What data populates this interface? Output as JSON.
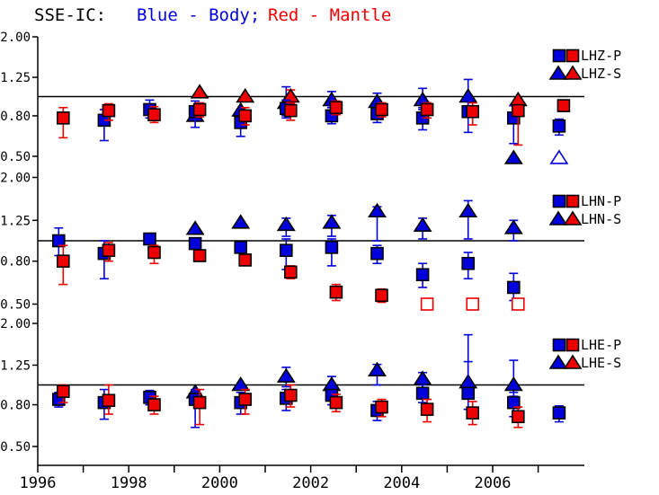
{
  "chart_data": {
    "type": "scatter",
    "title": {
      "station": "SSE-IC:",
      "body_label": "Blue - Body;",
      "mantle_label": "Red - Mantle"
    },
    "colors": {
      "body": "#0000dd",
      "mantle": "#ee0000",
      "axis": "#000000",
      "background": "#ffffff"
    },
    "y_axis": {
      "scale": "log",
      "tick_labels": [
        "2.00",
        "1.25",
        "0.80",
        "0.50"
      ],
      "tick_values": [
        2.0,
        1.25,
        0.8,
        0.5
      ],
      "reference_line": 1.0,
      "range": [
        0.44,
        2.2
      ]
    },
    "x_axis": {
      "tick_years": [
        1996,
        1997,
        1998,
        1999,
        2000,
        2001,
        2002,
        2003,
        2004,
        2005,
        2006,
        2007
      ],
      "labeled_years": [
        "1996",
        "1998",
        "2000",
        "2002",
        "2004",
        "2006"
      ],
      "range": [
        1996,
        2008
      ]
    },
    "point_format": [
      "year",
      "value",
      "err_lo",
      "err_hi",
      "open_symbol"
    ],
    "panels": [
      {
        "name": "LHZ",
        "legend": [
          {
            "label": "LHZ-P",
            "shape": "square"
          },
          {
            "label": "LHZ-S",
            "shape": "triangle"
          }
        ],
        "series": {
          "s_body": [
            [
              1999,
              0.8,
              null,
              null,
              0
            ],
            [
              2000,
              0.85,
              null,
              null,
              0
            ],
            [
              2001,
              0.93,
              0.8,
              1.12,
              0
            ],
            [
              2002,
              0.96,
              0.88,
              1.06,
              0
            ],
            [
              2003,
              0.94,
              0.86,
              1.04,
              0
            ],
            [
              2004,
              0.96,
              0.86,
              1.1,
              0
            ],
            [
              2005,
              1.0,
              0.84,
              1.22,
              0
            ],
            [
              2006,
              0.49,
              null,
              null,
              0
            ],
            [
              2007,
              0.49,
              null,
              null,
              1
            ]
          ],
          "s_mantle": [
            [
              1999,
              1.05,
              null,
              null,
              0
            ],
            [
              2000,
              1.0,
              null,
              null,
              0
            ],
            [
              2001,
              1.0,
              0.92,
              1.08,
              0
            ],
            [
              2006,
              0.96,
              null,
              null,
              0
            ]
          ],
          "p_body": [
            [
              1997,
              0.76,
              0.6,
              0.86,
              0
            ],
            [
              1998,
              0.86,
              0.78,
              0.96,
              0
            ],
            [
              1999,
              0.84,
              0.7,
              0.95,
              0
            ],
            [
              2000,
              0.74,
              0.63,
              0.85,
              0
            ],
            [
              2001,
              0.87,
              0.78,
              0.96,
              0
            ],
            [
              2002,
              0.8,
              0.73,
              0.9,
              0
            ],
            [
              2003,
              0.82,
              0.74,
              0.9,
              0
            ],
            [
              2004,
              0.78,
              0.68,
              0.88,
              0
            ],
            [
              2005,
              0.84,
              0.66,
              0.95,
              0
            ],
            [
              2006,
              0.78,
              0.58,
              0.9,
              0
            ],
            [
              2007,
              0.71,
              0.64,
              0.77,
              0
            ]
          ],
          "p_mantle": [
            [
              1996,
              0.78,
              0.62,
              0.88,
              0
            ],
            [
              1997,
              0.85,
              0.76,
              0.92,
              0
            ],
            [
              1998,
              0.81,
              0.74,
              0.89,
              0
            ],
            [
              1999,
              0.86,
              0.79,
              0.93,
              0
            ],
            [
              2000,
              0.8,
              0.72,
              0.88,
              0
            ],
            [
              2001,
              0.85,
              0.76,
              0.93,
              0
            ],
            [
              2002,
              0.88,
              0.81,
              0.95,
              0
            ],
            [
              2003,
              0.86,
              0.79,
              0.93,
              0
            ],
            [
              2004,
              0.86,
              0.78,
              0.93,
              0
            ],
            [
              2005,
              0.84,
              0.72,
              0.93,
              0
            ],
            [
              2006,
              0.85,
              0.57,
              0.95,
              0
            ],
            [
              2007,
              0.9,
              null,
              null,
              0
            ]
          ]
        }
      },
      {
        "name": "LHN",
        "legend": [
          {
            "label": "LHN-P",
            "shape": "square"
          },
          {
            "label": "LHN-S",
            "shape": "triangle"
          }
        ],
        "series": {
          "s_body": [
            [
              1999,
              1.14,
              null,
              null,
              0
            ],
            [
              2000,
              1.22,
              null,
              null,
              0
            ],
            [
              2001,
              1.19,
              1.05,
              1.28,
              0
            ],
            [
              2002,
              1.22,
              1.05,
              1.32,
              0
            ],
            [
              2003,
              1.38,
              1.0,
              1.45,
              0
            ],
            [
              2004,
              1.18,
              1.02,
              1.28,
              0
            ],
            [
              2005,
              1.38,
              1.02,
              1.55,
              0
            ],
            [
              2006,
              1.15,
              1.0,
              1.25,
              0
            ]
          ],
          "s_mantle": [],
          "p_body": [
            [
              1996,
              1.0,
              0.85,
              1.15,
              0
            ],
            [
              1997,
              0.87,
              0.66,
              1.0,
              0
            ],
            [
              1998,
              1.02,
              null,
              null,
              0
            ],
            [
              1999,
              0.97,
              null,
              null,
              0
            ],
            [
              2000,
              0.93,
              null,
              null,
              0
            ],
            [
              2001,
              0.9,
              0.73,
              1.02,
              0
            ],
            [
              2002,
              0.93,
              0.76,
              1.02,
              0
            ],
            [
              2003,
              0.87,
              0.78,
              0.95,
              0
            ],
            [
              2004,
              0.69,
              0.6,
              0.78,
              0
            ],
            [
              2005,
              0.78,
              0.66,
              0.88,
              0
            ],
            [
              2006,
              0.6,
              0.52,
              0.7,
              0
            ]
          ],
          "p_mantle": [
            [
              1996,
              0.8,
              0.62,
              0.95,
              0
            ],
            [
              1997,
              0.9,
              0.8,
              0.98,
              0
            ],
            [
              1998,
              0.88,
              0.78,
              0.95,
              0
            ],
            [
              1999,
              0.85,
              null,
              null,
              0
            ],
            [
              2000,
              0.81,
              null,
              null,
              0
            ],
            [
              2001,
              0.71,
              0.66,
              0.76,
              0
            ],
            [
              2002,
              0.57,
              0.52,
              0.62,
              0
            ],
            [
              2003,
              0.55,
              0.51,
              0.59,
              0
            ],
            [
              2004,
              0.5,
              null,
              null,
              1
            ],
            [
              2005,
              0.5,
              null,
              null,
              1
            ],
            [
              2006,
              0.5,
              null,
              null,
              1
            ]
          ]
        }
      },
      {
        "name": "LHE",
        "legend": [
          {
            "label": "LHE-P",
            "shape": "square"
          },
          {
            "label": "LHE-S",
            "shape": "triangle"
          }
        ],
        "series": {
          "s_body": [
            [
              1999,
              0.92,
              null,
              null,
              0
            ],
            [
              2000,
              1.0,
              null,
              null,
              0
            ],
            [
              2001,
              1.1,
              0.98,
              1.22,
              0
            ],
            [
              2002,
              1.0,
              0.9,
              1.1,
              0
            ],
            [
              2003,
              1.18,
              1.0,
              1.26,
              0
            ],
            [
              2004,
              1.07,
              0.96,
              1.15,
              0
            ],
            [
              2005,
              1.03,
              0.9,
              1.76,
              0
            ],
            [
              2006,
              1.0,
              0.88,
              1.32,
              0
            ]
          ],
          "s_mantle": [],
          "p_body": [
            [
              1996,
              0.85,
              0.78,
              0.92,
              0
            ],
            [
              1997,
              0.82,
              0.68,
              0.95,
              0
            ],
            [
              1998,
              0.87,
              0.8,
              0.94,
              0
            ],
            [
              1999,
              0.85,
              0.62,
              0.95,
              0
            ],
            [
              2000,
              0.82,
              0.72,
              0.92,
              0
            ],
            [
              2001,
              0.86,
              0.75,
              0.95,
              0
            ],
            [
              2002,
              0.89,
              0.8,
              0.97,
              0
            ],
            [
              2003,
              0.75,
              0.67,
              0.83,
              0
            ],
            [
              2004,
              0.91,
              0.82,
              1.0,
              0
            ],
            [
              2005,
              0.91,
              0.76,
              1.3,
              0
            ],
            [
              2006,
              0.82,
              0.7,
              0.92,
              0
            ],
            [
              2007,
              0.73,
              0.66,
              0.79,
              0
            ]
          ],
          "p_mantle": [
            [
              1996,
              0.93,
              0.82,
              1.0,
              0
            ],
            [
              1997,
              0.84,
              0.72,
              1.0,
              0
            ],
            [
              1998,
              0.8,
              0.72,
              0.88,
              0
            ],
            [
              1999,
              0.82,
              0.64,
              0.95,
              0
            ],
            [
              2000,
              0.85,
              0.72,
              0.95,
              0
            ],
            [
              2001,
              0.89,
              0.78,
              1.0,
              0
            ],
            [
              2002,
              0.82,
              0.74,
              0.9,
              0
            ],
            [
              2003,
              0.78,
              0.7,
              0.85,
              0
            ],
            [
              2004,
              0.76,
              0.66,
              0.85,
              0
            ],
            [
              2005,
              0.73,
              0.64,
              0.83,
              0
            ],
            [
              2006,
              0.7,
              0.62,
              0.78,
              0
            ]
          ]
        }
      }
    ]
  }
}
